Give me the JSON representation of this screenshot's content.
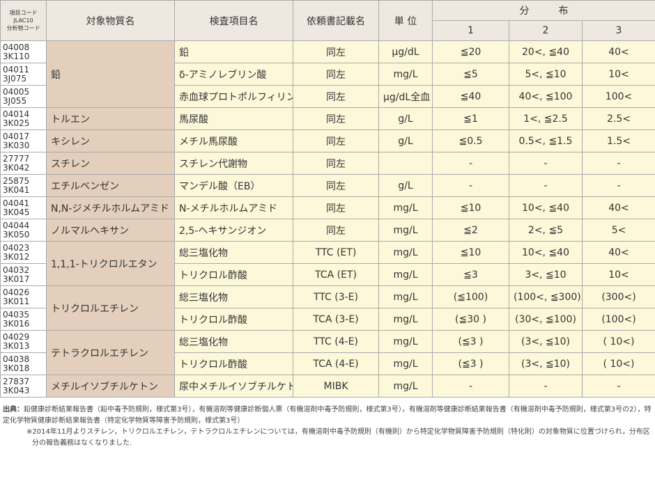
{
  "header": {
    "code": [
      "項目コード",
      "JLAC10",
      "分析物コード"
    ],
    "substance": "対象物質名",
    "item": "検査項目名",
    "request": "依頼書記載名",
    "unit": "単 位",
    "distribution": "分　　　布",
    "columns": [
      "1",
      "2",
      "3"
    ]
  },
  "groups": [
    {
      "substance": "鉛",
      "items": [
        {
          "code": [
            "04008",
            "3K110"
          ],
          "item": "鉛",
          "request": "同左",
          "unit": "μg/dL",
          "dist": [
            "≦20",
            "20<, ≦40",
            "40<"
          ]
        },
        {
          "code": [
            "04011",
            "3J075"
          ],
          "item": "δ-アミノレブリン酸",
          "request": "同左",
          "unit": "mg/L",
          "dist": [
            "≦5",
            "5<, ≦10",
            "10<"
          ]
        },
        {
          "code": [
            "04005",
            "3J055"
          ],
          "item": "赤血球プロトポルフィリン",
          "request": "同左",
          "unit": "μg/dL全血",
          "dist": [
            "≦40",
            "40<, ≦100",
            "100<"
          ]
        }
      ]
    },
    {
      "substance": "トルエン",
      "items": [
        {
          "code": [
            "04014",
            "3K025"
          ],
          "item": "馬尿酸",
          "request": "同左",
          "unit": "g/L",
          "dist": [
            "≦1",
            "1<, ≦2.5",
            "2.5<"
          ]
        }
      ]
    },
    {
      "substance": "キシレン",
      "items": [
        {
          "code": [
            "04017",
            "3K030"
          ],
          "item": "メチル馬尿酸",
          "request": "同左",
          "unit": "g/L",
          "dist": [
            "≦0.5",
            "0.5<, ≦1.5",
            "1.5<"
          ]
        }
      ]
    },
    {
      "substance": "スチレン",
      "items": [
        {
          "code": [
            "27777",
            "3K042"
          ],
          "item": "スチレン代謝物",
          "request": "同左",
          "unit": null,
          "dist": [
            "-",
            "-",
            "-"
          ]
        }
      ]
    },
    {
      "substance": "エチルベンゼン",
      "items": [
        {
          "code": [
            "25875",
            "3K041"
          ],
          "item": "マンデル酸（EB）",
          "request": "同左",
          "unit": "g/L",
          "dist": [
            "-",
            "-",
            "-"
          ]
        }
      ]
    },
    {
      "substance": "N,N-ジメチルホルムアミド",
      "items": [
        {
          "code": [
            "04041",
            "3K045"
          ],
          "item": "N-メチルホルムアミド",
          "request": "同左",
          "unit": "mg/L",
          "dist": [
            "≦10",
            "10<, ≦40",
            "40<"
          ]
        }
      ]
    },
    {
      "substance": "ノルマルヘキサン",
      "items": [
        {
          "code": [
            "04044",
            "3K050"
          ],
          "item": "2,5-ヘキサンジオン",
          "request": "同左",
          "unit": "mg/L",
          "dist": [
            "≦2",
            "2<, ≦5",
            "5<"
          ]
        }
      ]
    },
    {
      "substance": "1,1,1-トリクロルエタン",
      "items": [
        {
          "code": [
            "04023",
            "3K012"
          ],
          "item": "総三塩化物",
          "request": "TTC (ET)",
          "unit": "mg/L",
          "dist": [
            "≦10",
            "10<, ≦40",
            "40<"
          ]
        },
        {
          "code": [
            "04032",
            "3K017"
          ],
          "item": "トリクロル酢酸",
          "request": "TCA (ET)",
          "unit": "mg/L",
          "dist": [
            "≦3",
            "3<, ≦10",
            "10<"
          ]
        }
      ]
    },
    {
      "substance": "トリクロルエチレン",
      "items": [
        {
          "code": [
            "04026",
            "3K011"
          ],
          "item": "総三塩化物",
          "request": "TTC (3-E)",
          "unit": "mg/L",
          "dist": [
            "(≦100)",
            "(100<, ≦300)",
            "(300<)"
          ]
        },
        {
          "code": [
            "04035",
            "3K016"
          ],
          "item": "トリクロル酢酸",
          "request": "TCA (3-E)",
          "unit": "mg/L",
          "dist": [
            "(≦30 )",
            "(30<, ≦100)",
            "(100<)"
          ]
        }
      ]
    },
    {
      "substance": "テトラクロルエチレン",
      "items": [
        {
          "code": [
            "04029",
            "3K013"
          ],
          "item": "総三塩化物",
          "request": "TTC (4-E)",
          "unit": "mg/L",
          "dist": [
            "(≦3 )",
            "(3<, ≦10)",
            "( 10<)"
          ]
        },
        {
          "code": [
            "04038",
            "3K018"
          ],
          "item": "トリクロル酢酸",
          "request": "TCA (4-E)",
          "unit": "mg/L",
          "dist": [
            "(≦3 )",
            "(3<, ≦10)",
            "( 10<)"
          ]
        }
      ]
    },
    {
      "substance": "メチルイソブチルケトン",
      "items": [
        {
          "code": [
            "27837",
            "3K043"
          ],
          "item": "尿中メチルイソブチルケトン",
          "request": "MIBK",
          "unit": "mg/L",
          "dist": [
            "-",
            "-",
            "-"
          ]
        }
      ]
    }
  ],
  "notes": {
    "label": "出典：",
    "source": "鉛健康診断結果報告書（鉛中毒予防規則，様式第3号），有機溶剤等健康診断個人票（有機溶剤中毒予防規則，様式第3号），有機溶剤等健康診断結果報告書（有機溶剤中毒予防規則，様式第3号の2），特定化学物質健康診断結果報告書（特定化学物質等障害予防規則，様式第3号）",
    "remark": "※2014年11月よりスチレン，トリクロルエチレン，テトラクロルエチレンについては，有機溶剤中毒予防規則（有機則）から特定化学物質障害予防規則（特化則）の対象物質に位置づけられ，分布区分の報告義務はなくなりました."
  }
}
